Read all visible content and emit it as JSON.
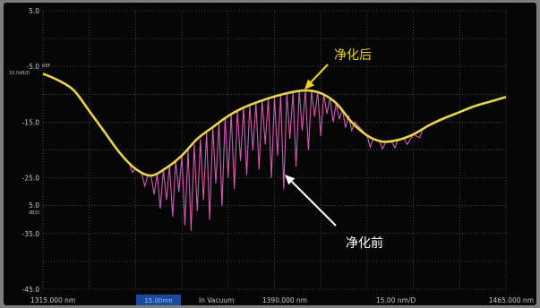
{
  "chart_data": {
    "type": "line",
    "xlim": [
      1315,
      1465
    ],
    "ylim": [
      -45,
      5
    ],
    "grid": true,
    "y_ticks": [
      {
        "value": 5,
        "label": "5.0"
      },
      {
        "value": -5,
        "label": "-5.0"
      },
      {
        "value": -15,
        "label": "-15.0"
      },
      {
        "value": -25,
        "label": "-25.0"
      },
      {
        "value": -35,
        "label": "-35.0"
      },
      {
        "value": -45,
        "label": "-45.0"
      }
    ],
    "ref_label": "REF",
    "y_scale_label": "10.0dB/D",
    "left_note": {
      "value": "5.0",
      "unit": "dB/D"
    },
    "series": [
      {
        "name": "净化后",
        "color": "#e8d54c",
        "x": [
          1315,
          1320,
          1325,
          1330,
          1335,
          1340,
          1345,
          1350,
          1355,
          1360,
          1365,
          1370,
          1375,
          1380,
          1385,
          1390,
          1395,
          1400,
          1405,
          1410,
          1415,
          1420,
          1425,
          1430,
          1435,
          1440,
          1445,
          1450,
          1455,
          1460,
          1465
        ],
        "y": [
          -6.3,
          -7.5,
          -9.3,
          -13.0,
          -16.8,
          -20.6,
          -23.4,
          -24.6,
          -23.2,
          -21.0,
          -18.0,
          -15.9,
          -13.9,
          -12.4,
          -11.3,
          -10.4,
          -9.7,
          -9.3,
          -9.8,
          -11.6,
          -15.0,
          -17.4,
          -18.5,
          -18.2,
          -17.2,
          -15.6,
          -14.3,
          -13.2,
          -12.1,
          -11.3,
          -10.5
        ]
      },
      {
        "name": "净化前",
        "color": "#d25ab2",
        "x": [
          1315,
          1320,
          1325,
          1330,
          1335,
          1340,
          1343,
          1344,
          1345,
          1347,
          1348,
          1349,
          1350,
          1351,
          1352,
          1353,
          1354,
          1355,
          1356,
          1357,
          1358,
          1359,
          1360,
          1361,
          1362,
          1363,
          1364,
          1365,
          1366,
          1367,
          1368,
          1369,
          1370,
          1371,
          1372,
          1373,
          1374,
          1375,
          1376,
          1377,
          1378,
          1379,
          1380,
          1381,
          1382,
          1383,
          1384,
          1385,
          1386,
          1387,
          1388,
          1389,
          1390,
          1391,
          1392,
          1393,
          1394,
          1395,
          1396,
          1397,
          1398,
          1399,
          1400,
          1401,
          1402,
          1403,
          1404,
          1405,
          1406,
          1407,
          1408,
          1409,
          1410,
          1411,
          1412,
          1413,
          1414,
          1415,
          1416,
          1418,
          1420,
          1421,
          1422,
          1424,
          1425,
          1426,
          1428,
          1429,
          1430,
          1432,
          1433,
          1435,
          1437,
          1438,
          1440,
          1445,
          1450,
          1455,
          1460,
          1465
        ],
        "y": [
          -6.3,
          -7.5,
          -9.3,
          -13.0,
          -16.8,
          -20.6,
          -22.5,
          -24.0,
          -23.4,
          -24.3,
          -26.5,
          -24.6,
          -24.6,
          -28.0,
          -24.2,
          -30.5,
          -23.6,
          -29.0,
          -22.8,
          -32.0,
          -22.0,
          -27.5,
          -21.0,
          -33.5,
          -20.0,
          -34.5,
          -19.0,
          -31.0,
          -18.0,
          -29.0,
          -16.8,
          -32.5,
          -15.9,
          -26.0,
          -15.0,
          -30.0,
          -14.2,
          -25.0,
          -13.6,
          -27.0,
          -13.0,
          -22.0,
          -12.4,
          -24.5,
          -11.9,
          -20.0,
          -11.5,
          -23.5,
          -11.1,
          -19.0,
          -10.7,
          -25.0,
          -10.4,
          -21.0,
          -10.1,
          -27.0,
          -9.8,
          -18.0,
          -9.6,
          -23.0,
          -9.4,
          -16.5,
          -9.3,
          -20.0,
          -9.4,
          -14.0,
          -9.6,
          -17.5,
          -10.0,
          -13.5,
          -10.6,
          -15.0,
          -11.6,
          -14.5,
          -12.6,
          -16.0,
          -13.8,
          -16.5,
          -15.0,
          -16.2,
          -17.4,
          -19.5,
          -18.0,
          -18.4,
          -19.8,
          -18.6,
          -18.5,
          -19.6,
          -18.2,
          -18.0,
          -19.0,
          -17.2,
          -17.8,
          -16.4,
          -15.6,
          -14.3,
          -13.2,
          -12.1,
          -11.3,
          -10.5
        ]
      }
    ]
  },
  "bottom_bar": {
    "start": "1315.000 nm",
    "span_box": "15.00nm",
    "medium": "In Vacuum",
    "center": "1390.000 nm",
    "scale": "15.00 nm/D",
    "stop": "1465.000 nm"
  }
}
